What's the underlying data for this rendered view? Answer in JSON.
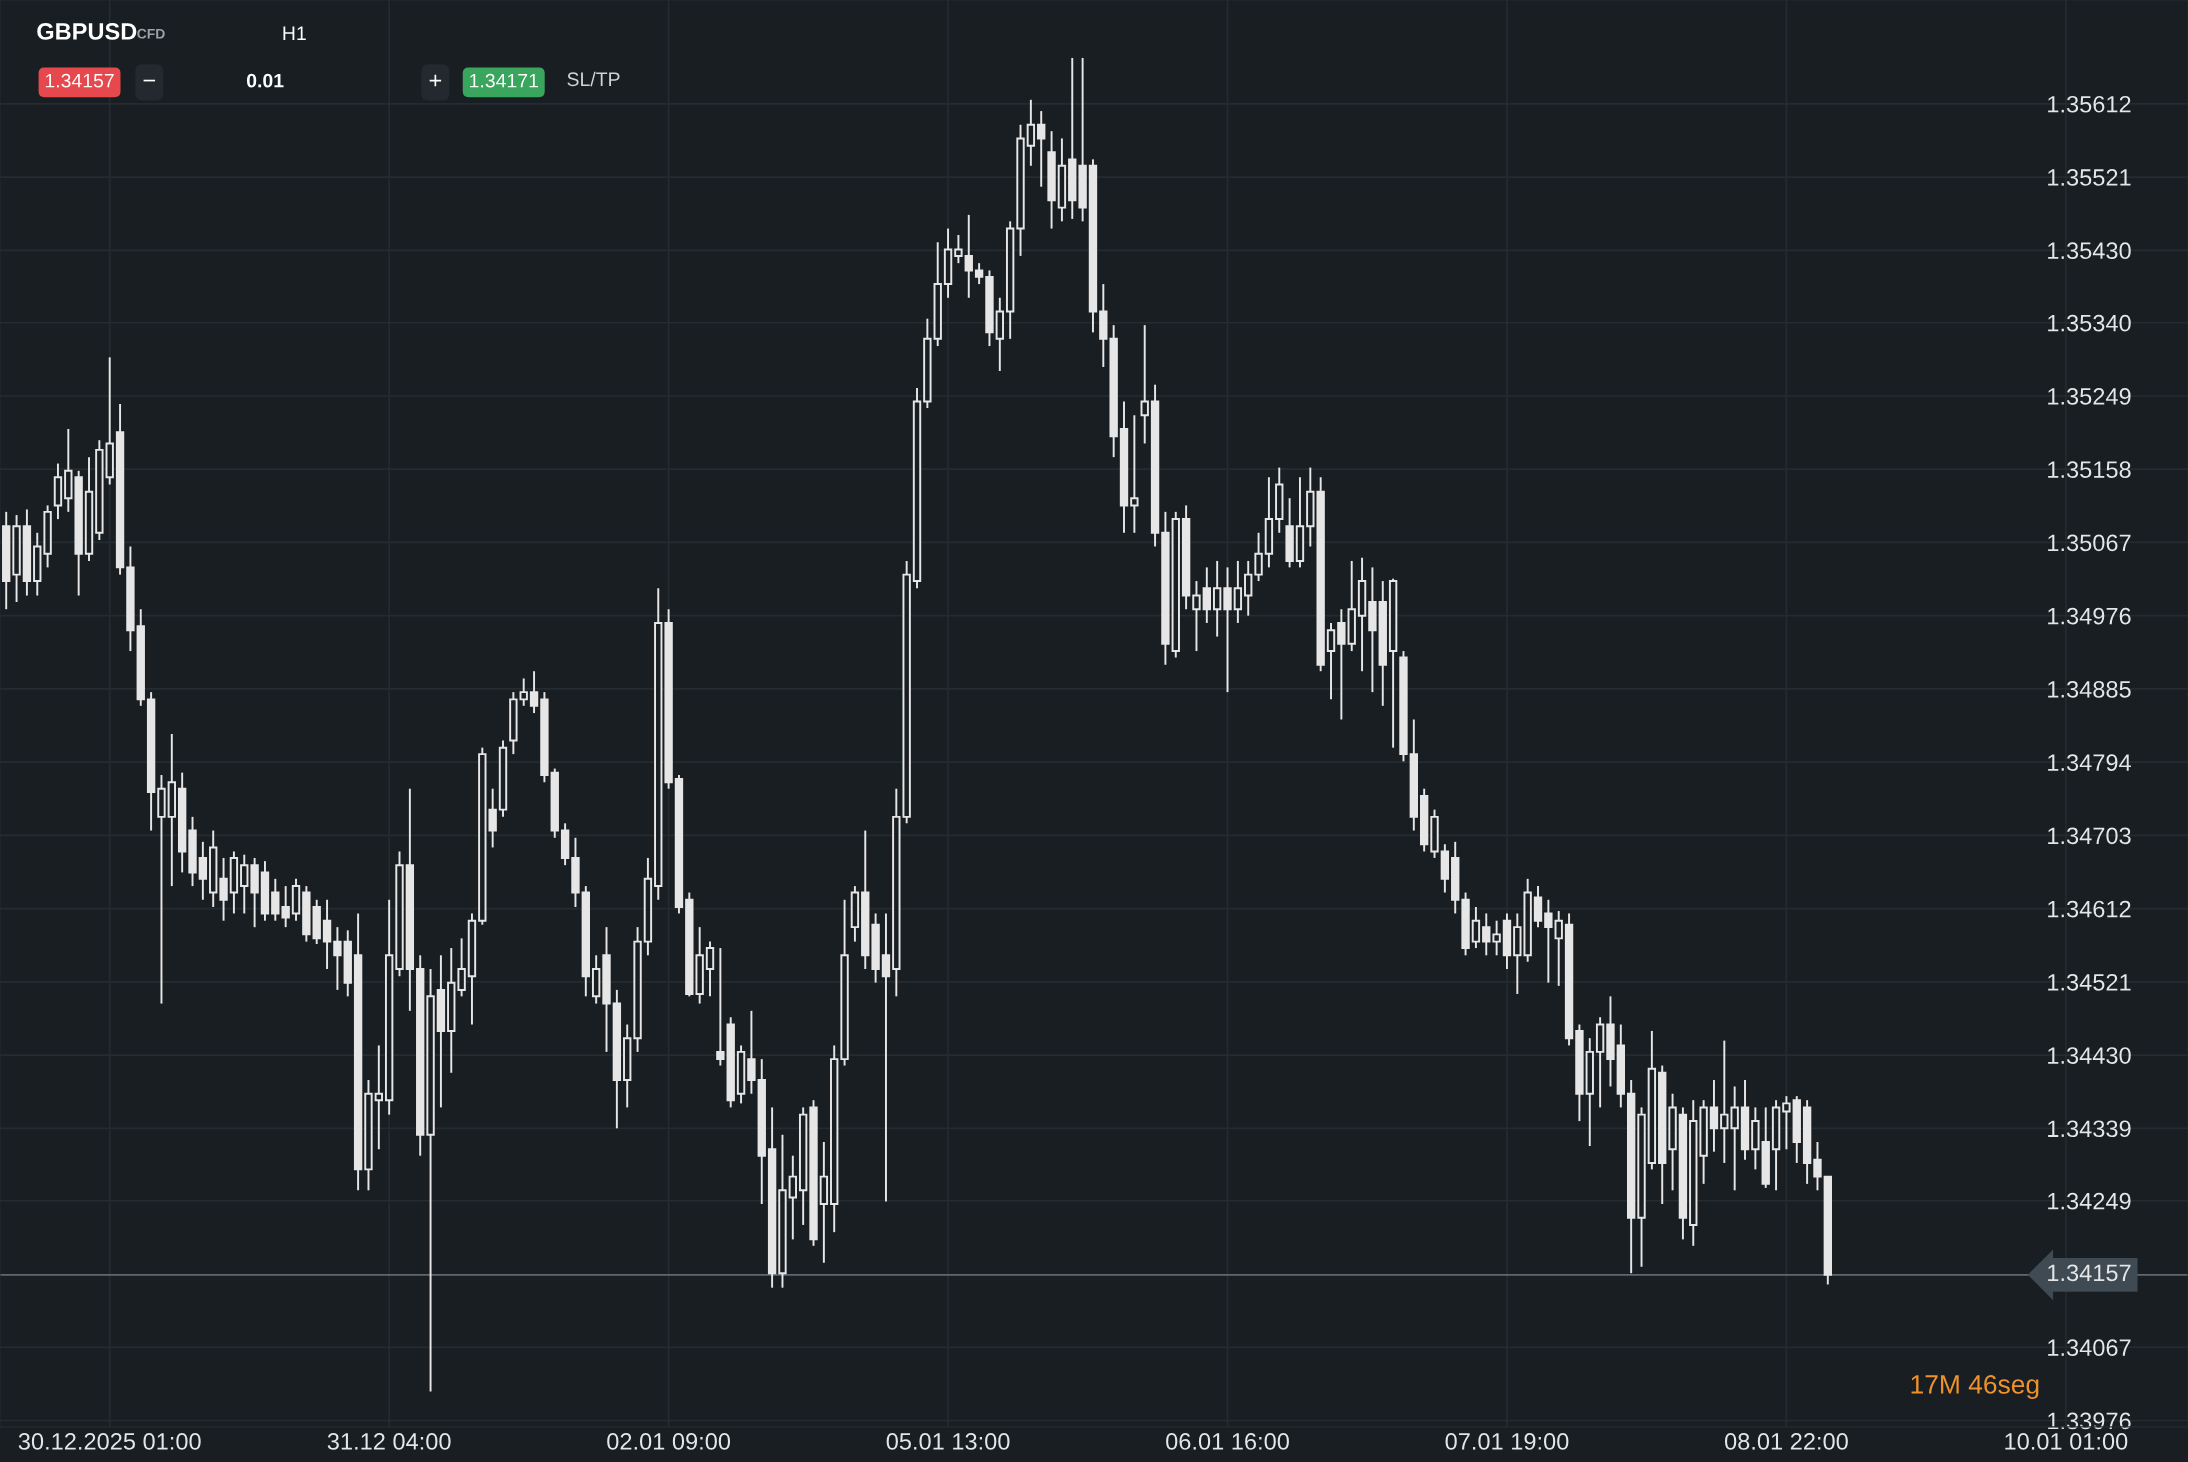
{
  "chart_data": {
    "type": "candlestick",
    "color": "#e6e6e6",
    "categories": [
      null,
      null,
      null,
      null,
      null,
      null,
      null,
      null,
      null,
      null,
      "30.12.2025 01:00",
      null,
      null,
      null,
      null,
      null,
      null,
      null,
      null,
      null,
      null,
      null,
      null,
      null,
      null,
      null,
      null,
      null,
      null,
      null,
      null,
      null,
      null,
      null,
      null,
      null,
      null,
      "31.12 04:00",
      null,
      null,
      null,
      null,
      null,
      null,
      null,
      null,
      null,
      null,
      null,
      null,
      null,
      null,
      null,
      null,
      null,
      null,
      null,
      null,
      null,
      null,
      null,
      null,
      null,
      null,
      "02.01 09:00",
      null,
      null,
      null,
      null,
      null,
      null,
      null,
      null,
      null,
      null,
      null,
      null,
      null,
      null,
      null,
      null,
      null,
      null,
      null,
      null,
      null,
      null,
      null,
      null,
      null,
      null,
      "05.01 13:00",
      null,
      null,
      null,
      null,
      null,
      null,
      null,
      null,
      null,
      null,
      null,
      null,
      null,
      null,
      null,
      null,
      null,
      null,
      null,
      null,
      null,
      null,
      null,
      null,
      null,
      null,
      "06.01 16:00",
      null,
      null,
      null,
      null,
      null,
      null,
      null,
      null,
      null,
      null,
      null,
      null,
      null,
      null,
      null,
      null,
      null,
      null,
      null,
      null,
      null,
      null,
      null,
      null,
      null,
      null,
      "07.01 19:00",
      null,
      null,
      null,
      null,
      null,
      null,
      null,
      null,
      null,
      null,
      null,
      null,
      null,
      null,
      null,
      null,
      null,
      null,
      null,
      null,
      null,
      null,
      null,
      null,
      null,
      null,
      "08.01 22:00",
      null,
      null,
      null,
      null,
      null,
      null,
      null,
      null,
      null,
      null,
      null,
      null,
      null,
      null,
      null,
      null,
      null,
      null,
      null,
      null,
      null,
      null,
      null,
      null,
      null,
      null,
      "10.01 01:00"
    ],
    "ohlc": [
      [
        1.35087,
        1.35105,
        1.34984,
        1.35019
      ],
      [
        1.35027,
        1.35101,
        1.34993,
        1.35087
      ],
      [
        1.35087,
        1.35108,
        1.35001,
        1.35019
      ],
      [
        1.35019,
        1.35079,
        1.35001,
        1.35062
      ],
      [
        1.35053,
        1.35113,
        1.35036,
        1.35105
      ],
      [
        1.35113,
        1.35165,
        1.35096,
        1.35148
      ],
      [
        1.35122,
        1.35208,
        1.35105,
        1.35156
      ],
      [
        1.35148,
        1.35156,
        1.35001,
        1.35053
      ],
      [
        1.35053,
        1.35173,
        1.35044,
        1.3513
      ],
      [
        1.35079,
        1.35194,
        1.3507,
        1.35182
      ],
      [
        1.35148,
        1.35297,
        1.35139,
        1.3519
      ],
      [
        1.35204,
        1.35239,
        1.35027,
        1.35036
      ],
      [
        1.35036,
        1.35062,
        1.34932,
        1.34958
      ],
      [
        1.34963,
        1.34984,
        1.34864,
        1.34872
      ],
      [
        1.34872,
        1.34881,
        1.34709,
        1.34757
      ],
      [
        1.34726,
        1.34778,
        1.34494,
        1.34761
      ],
      [
        1.34726,
        1.34829,
        1.3464,
        1.34769
      ],
      [
        1.34761,
        1.34781,
        1.34657,
        1.34683
      ],
      [
        1.34709,
        1.34726,
        1.3464,
        1.34657
      ],
      [
        1.34675,
        1.34695,
        1.34623,
        1.34649
      ],
      [
        1.34632,
        1.34709,
        1.34614,
        1.34688
      ],
      [
        1.34649,
        1.34675,
        1.34597,
        1.34623
      ],
      [
        1.34632,
        1.34683,
        1.34606,
        1.34675
      ],
      [
        1.3464,
        1.34679,
        1.34606,
        1.34666
      ],
      [
        1.34666,
        1.34675,
        1.34589,
        1.34632
      ],
      [
        1.34657,
        1.34671,
        1.34597,
        1.34606
      ],
      [
        1.34632,
        1.34649,
        1.34597,
        1.34606
      ],
      [
        1.34614,
        1.3464,
        1.34589,
        1.34601
      ],
      [
        1.34606,
        1.34649,
        1.34597,
        1.3464
      ],
      [
        1.34632,
        1.3464,
        1.34571,
        1.3458
      ],
      [
        1.34614,
        1.34623,
        1.34568,
        1.34575
      ],
      [
        1.34597,
        1.34623,
        1.34537,
        1.34571
      ],
      [
        1.34571,
        1.34589,
        1.34511,
        1.34554
      ],
      [
        1.34571,
        1.34585,
        1.34503,
        1.3452
      ],
      [
        1.34554,
        1.34606,
        1.34262,
        1.34288
      ],
      [
        1.34288,
        1.34399,
        1.34262,
        1.34382
      ],
      [
        1.34374,
        1.34442,
        1.34313,
        1.34382
      ],
      [
        1.34374,
        1.34623,
        1.34356,
        1.34554
      ],
      [
        1.34537,
        1.34683,
        1.34528,
        1.34666
      ],
      [
        1.34666,
        1.34761,
        1.34485,
        1.34537
      ],
      [
        1.34537,
        1.34554,
        1.34305,
        1.34331
      ],
      [
        1.34331,
        1.34537,
        1.34012,
        1.34503
      ],
      [
        1.34511,
        1.34554,
        1.34365,
        1.3446
      ],
      [
        1.3446,
        1.34563,
        1.34408,
        1.3452
      ],
      [
        1.34511,
        1.34575,
        1.34503,
        1.34537
      ],
      [
        1.34528,
        1.34606,
        1.34468,
        1.34597
      ],
      [
        1.34597,
        1.34812,
        1.34592,
        1.34804
      ],
      [
        1.34735,
        1.34761,
        1.34688,
        1.34709
      ],
      [
        1.34735,
        1.34821,
        1.34726,
        1.34812
      ],
      [
        1.34821,
        1.34881,
        1.34804,
        1.34872
      ],
      [
        1.34872,
        1.34898,
        1.34864,
        1.34881
      ],
      [
        1.34881,
        1.34907,
        1.34855,
        1.34864
      ],
      [
        1.34872,
        1.34881,
        1.34769,
        1.34778
      ],
      [
        1.34781,
        1.34786,
        1.347,
        1.34709
      ],
      [
        1.34709,
        1.34718,
        1.34666,
        1.34675
      ],
      [
        1.34675,
        1.347,
        1.34614,
        1.34632
      ],
      [
        1.34632,
        1.3464,
        1.34503,
        1.34528
      ],
      [
        1.34503,
        1.34554,
        1.34494,
        1.34537
      ],
      [
        1.34554,
        1.34589,
        1.34434,
        1.34494
      ],
      [
        1.34494,
        1.34511,
        1.34339,
        1.34399
      ],
      [
        1.34399,
        1.34468,
        1.34365,
        1.34451
      ],
      [
        1.34451,
        1.34589,
        1.34434,
        1.34571
      ],
      [
        1.34571,
        1.34675,
        1.34554,
        1.34649
      ],
      [
        1.3464,
        1.3501,
        1.34623,
        1.34967
      ],
      [
        1.34967,
        1.34984,
        1.34761,
        1.34769
      ],
      [
        1.34773,
        1.34778,
        1.34606,
        1.34614
      ],
      [
        1.34623,
        1.34632,
        1.34503,
        1.34506
      ],
      [
        1.34506,
        1.34589,
        1.34494,
        1.34554
      ],
      [
        1.34537,
        1.34571,
        1.34503,
        1.34563
      ],
      [
        1.34434,
        1.34563,
        1.34417,
        1.34425
      ],
      [
        1.34468,
        1.34477,
        1.34365,
        1.34374
      ],
      [
        1.34382,
        1.34442,
        1.3437,
        1.34434
      ],
      [
        1.34425,
        1.34485,
        1.34382,
        1.34399
      ],
      [
        1.34399,
        1.34425,
        1.34245,
        1.34305
      ],
      [
        1.34313,
        1.34365,
        1.34141,
        1.34159
      ],
      [
        1.34159,
        1.34331,
        1.34141,
        1.34262
      ],
      [
        1.34253,
        1.34305,
        1.34201,
        1.34279
      ],
      [
        1.34262,
        1.34365,
        1.34219,
        1.34356
      ],
      [
        1.34365,
        1.34374,
        1.34193,
        1.34201
      ],
      [
        1.34245,
        1.34322,
        1.34172,
        1.34279
      ],
      [
        1.34245,
        1.34442,
        1.3421,
        1.34425
      ],
      [
        1.34425,
        1.34623,
        1.34417,
        1.34554
      ],
      [
        1.34589,
        1.3464,
        1.34571,
        1.34632
      ],
      [
        1.34632,
        1.34709,
        1.34537,
        1.34554
      ],
      [
        1.34592,
        1.34606,
        1.3452,
        1.34537
      ],
      [
        1.34554,
        1.34606,
        1.34248,
        1.34528
      ],
      [
        1.34537,
        1.34761,
        1.34503,
        1.34726
      ],
      [
        1.34726,
        1.35044,
        1.34718,
        1.35027
      ],
      [
        1.35019,
        1.35259,
        1.3501,
        1.35242
      ],
      [
        1.35242,
        1.35345,
        1.35234,
        1.3532
      ],
      [
        1.3532,
        1.3544,
        1.35311,
        1.35388
      ],
      [
        1.35388,
        1.35457,
        1.35371,
        1.35431
      ],
      [
        1.35423,
        1.35449,
        1.35414,
        1.35431
      ],
      [
        1.35423,
        1.35474,
        1.35371,
        1.35405
      ],
      [
        1.35405,
        1.35414,
        1.35388,
        1.35397
      ],
      [
        1.35397,
        1.35405,
        1.35311,
        1.35328
      ],
      [
        1.3532,
        1.35371,
        1.3528,
        1.35354
      ],
      [
        1.35354,
        1.35466,
        1.3532,
        1.35457
      ],
      [
        1.35457,
        1.35586,
        1.35423,
        1.35569
      ],
      [
        1.3556,
        1.35617,
        1.35535,
        1.35586
      ],
      [
        1.35586,
        1.35603,
        1.35509,
        1.35569
      ],
      [
        1.35552,
        1.35578,
        1.35457,
        1.35492
      ],
      [
        1.35483,
        1.35569,
        1.35466,
        1.35535
      ],
      [
        1.35543,
        1.35669,
        1.35469,
        1.35492
      ],
      [
        1.35535,
        1.35669,
        1.35466,
        1.35483
      ],
      [
        1.35535,
        1.35543,
        1.35328,
        1.35354
      ],
      [
        1.35354,
        1.35388,
        1.35285,
        1.3532
      ],
      [
        1.3532,
        1.35337,
        1.35173,
        1.35199
      ],
      [
        1.35208,
        1.35242,
        1.35079,
        1.35113
      ],
      [
        1.35113,
        1.35225,
        1.35079,
        1.35122
      ],
      [
        1.35225,
        1.35337,
        1.3519,
        1.35242
      ],
      [
        1.35242,
        1.35263,
        1.35062,
        1.35079
      ],
      [
        1.35079,
        1.35105,
        1.34915,
        1.34941
      ],
      [
        1.34932,
        1.35105,
        1.34924,
        1.35096
      ],
      [
        1.35096,
        1.35113,
        1.34984,
        1.35001
      ],
      [
        1.34984,
        1.35019,
        1.34932,
        1.35001
      ],
      [
        1.3501,
        1.35036,
        1.34967,
        1.34984
      ],
      [
        1.34984,
        1.35044,
        1.3495,
        1.3501
      ],
      [
        1.3501,
        1.35036,
        1.34881,
        1.34984
      ],
      [
        1.34984,
        1.35044,
        1.34967,
        1.3501
      ],
      [
        1.35001,
        1.35044,
        1.34976,
        1.35027
      ],
      [
        1.35027,
        1.35079,
        1.35019,
        1.35053
      ],
      [
        1.35053,
        1.35148,
        1.35036,
        1.35096
      ],
      [
        1.35096,
        1.3516,
        1.35079,
        1.35139
      ],
      [
        1.35087,
        1.35122,
        1.35036,
        1.35044
      ],
      [
        1.35044,
        1.35148,
        1.35036,
        1.35087
      ],
      [
        1.35087,
        1.3516,
        1.35062,
        1.3513
      ],
      [
        1.3513,
        1.35148,
        1.34907,
        1.34915
      ],
      [
        1.34932,
        1.34967,
        1.34872,
        1.34958
      ],
      [
        1.34967,
        1.34984,
        1.34847,
        1.34941
      ],
      [
        1.34941,
        1.35044,
        1.34932,
        1.34984
      ],
      [
        1.34976,
        1.35048,
        1.34907,
        1.35019
      ],
      [
        1.34993,
        1.35036,
        1.34881,
        1.34958
      ],
      [
        1.34993,
        1.35019,
        1.34864,
        1.34915
      ],
      [
        1.34932,
        1.35022,
        1.34812,
        1.35019
      ],
      [
        1.34924,
        1.34932,
        1.34795,
        1.34804
      ],
      [
        1.34804,
        1.34847,
        1.34709,
        1.34726
      ],
      [
        1.34752,
        1.34761,
        1.34683,
        1.34692
      ],
      [
        1.34683,
        1.34735,
        1.34675,
        1.34726
      ],
      [
        1.34683,
        1.34692,
        1.34632,
        1.34649
      ],
      [
        1.34675,
        1.34695,
        1.34606,
        1.34623
      ],
      [
        1.34623,
        1.34632,
        1.34554,
        1.34563
      ],
      [
        1.34571,
        1.34614,
        1.34563,
        1.34597
      ],
      [
        1.34589,
        1.34606,
        1.34554,
        1.34571
      ],
      [
        1.34571,
        1.34597,
        1.34554,
        1.3458
      ],
      [
        1.34597,
        1.34606,
        1.34537,
        1.34554
      ],
      [
        1.34554,
        1.34606,
        1.34506,
        1.34589
      ],
      [
        1.34554,
        1.34649,
        1.34546,
        1.34632
      ],
      [
        1.34626,
        1.3464,
        1.34589,
        1.34597
      ],
      [
        1.34606,
        1.34623,
        1.3452,
        1.34589
      ],
      [
        1.34575,
        1.34609,
        1.34516,
        1.34597
      ],
      [
        1.34592,
        1.34606,
        1.34442,
        1.34451
      ],
      [
        1.3446,
        1.34468,
        1.34348,
        1.34382
      ],
      [
        1.34382,
        1.34451,
        1.34317,
        1.34434
      ],
      [
        1.34434,
        1.34477,
        1.34365,
        1.34468
      ],
      [
        1.34468,
        1.34503,
        1.34391,
        1.34425
      ],
      [
        1.34442,
        1.34468,
        1.34365,
        1.34382
      ],
      [
        1.34382,
        1.34399,
        1.34159,
        1.34228
      ],
      [
        1.34228,
        1.34365,
        1.34167,
        1.34356
      ],
      [
        1.34296,
        1.3446,
        1.34288,
        1.34413
      ],
      [
        1.34408,
        1.34417,
        1.34245,
        1.34296
      ],
      [
        1.34313,
        1.34382,
        1.34262,
        1.34365
      ],
      [
        1.34356,
        1.34365,
        1.34201,
        1.34228
      ],
      [
        1.34219,
        1.34374,
        1.34193,
        1.34348
      ],
      [
        1.34305,
        1.34374,
        1.3427,
        1.34365
      ],
      [
        1.34365,
        1.34399,
        1.3431,
        1.34339
      ],
      [
        1.34339,
        1.34448,
        1.34296,
        1.34356
      ],
      [
        1.34339,
        1.34391,
        1.34262,
        1.34365
      ],
      [
        1.34365,
        1.34399,
        1.343,
        1.34313
      ],
      [
        1.34313,
        1.34365,
        1.34288,
        1.34348
      ],
      [
        1.34322,
        1.34365,
        1.34265,
        1.3427
      ],
      [
        1.34313,
        1.34374,
        1.34262,
        1.34365
      ],
      [
        1.3436,
        1.34379,
        1.34313,
        1.3437
      ],
      [
        1.34374,
        1.34379,
        1.34296,
        1.34322
      ],
      [
        1.34365,
        1.34374,
        1.3427,
        1.34296
      ],
      [
        1.343,
        1.34322,
        1.34262,
        1.34279
      ],
      [
        1.34279,
        1.34279,
        1.34145,
        1.34157
      ],
      null,
      null,
      null,
      null,
      null,
      null,
      null,
      null,
      null,
      null,
      null,
      null,
      null,
      null,
      null,
      null,
      null,
      null,
      null,
      null,
      null,
      null,
      null
    ],
    "ylim": [
      1.33968,
      1.35741
    ],
    "yticks": [
      1.35612,
      1.35521,
      {
        "value": 1.3543,
        "label": "1.35430"
      },
      {
        "value": 1.3534,
        "label": "1.35340"
      },
      1.35249,
      1.35158,
      1.35067,
      1.34976,
      1.34885,
      1.34794,
      1.34703,
      1.34612,
      1.34521,
      {
        "value": 1.3443,
        "label": "1.34430"
      },
      1.34339,
      1.34249,
      1.34067,
      1.33976
    ],
    "ref_lines": [
      {
        "axis": "y",
        "value": 1.34157,
        "label": "1.34157",
        "color": "#5d6870"
      }
    ],
    "grid": true,
    "annotations": [
      "GBPUSD",
      "CFD",
      "H1",
      "1.34157",
      "−",
      "0.01",
      "+",
      "1.34171",
      "SL/TP",
      "17M 46seg"
    ]
  }
}
